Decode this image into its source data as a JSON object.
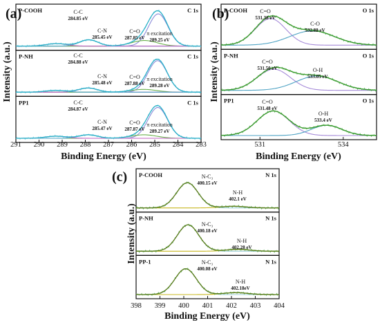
{
  "chart_data": [
    {
      "type": "line",
      "panel": "(a)",
      "xlabel": "Binding Energy (eV)",
      "ylabel": "Intensity (a.u.)",
      "xlim": [
        291,
        283
      ],
      "xticks": [
        283,
        284,
        285,
        286,
        287,
        288,
        289,
        290,
        291
      ],
      "subplots": [
        {
          "sample": "P-COOH",
          "region": "C 1s",
          "peaks": [
            {
              "name": "C-C",
              "value": "284.85 eV",
              "x": 284.85,
              "height": 0.92,
              "width": 0.42,
              "color": "#8a8ad8"
            },
            {
              "name": "C-N",
              "value": "285.45 eV",
              "x": 285.45,
              "height": 0.16,
              "width": 0.55,
              "color": "#6ab04c"
            },
            {
              "name": "C=O",
              "value": "287.85 eV",
              "x": 287.85,
              "height": 0.18,
              "width": 0.4,
              "color": "#4fa3c4"
            },
            {
              "name": "π excitation",
              "value": "289.25 eV",
              "x": 289.25,
              "height": 0.07,
              "width": 0.45,
              "color": "#c060c0"
            }
          ]
        },
        {
          "sample": "P-NH",
          "region": "C 1s",
          "peaks": [
            {
              "name": "C-C",
              "value": "284.88 eV",
              "x": 284.88,
              "height": 0.9,
              "width": 0.42,
              "color": "#8a8ad8"
            },
            {
              "name": "C-N",
              "value": "285.48 eV",
              "x": 285.48,
              "height": 0.08,
              "width": 0.55,
              "color": "#6ab04c"
            },
            {
              "name": "C=O",
              "value": "287.88 eV",
              "x": 287.88,
              "height": 0.12,
              "width": 0.4,
              "color": "#c060c0"
            },
            {
              "name": "π excitation",
              "value": "289.28 eV",
              "x": 289.28,
              "height": 0.05,
              "width": 0.45,
              "color": "#4fa3c4"
            }
          ]
        },
        {
          "sample": "PP1",
          "region": "C 1s",
          "peaks": [
            {
              "name": "C-C",
              "value": "284.87 eV",
              "x": 284.87,
              "height": 0.88,
              "width": 0.42,
              "color": "#8a8ad8"
            },
            {
              "name": "C-N",
              "value": "285.47 eV",
              "x": 285.47,
              "height": 0.1,
              "width": 0.55,
              "color": "#6ab04c"
            },
            {
              "name": "C=O",
              "value": "287.87 eV",
              "x": 287.87,
              "height": 0.1,
              "width": 0.4,
              "color": "#4fa3c4"
            },
            {
              "name": "π excitation",
              "value": "289.27 eV",
              "x": 289.27,
              "height": 0.06,
              "width": 0.45,
              "color": "#c060c0"
            }
          ]
        }
      ]
    },
    {
      "type": "line",
      "panel": "(b)",
      "xlabel": "Binding Energy (eV)",
      "ylabel": "Intensity (a.u.)",
      "xlim": [
        529.6,
        535.2
      ],
      "xticks": [
        531,
        534
      ],
      "subplots": [
        {
          "sample": "P-COOH",
          "region": "O 1s",
          "peaks": [
            {
              "name": "C=O",
              "value": "531.38 eV",
              "x": 531.38,
              "height": 0.78,
              "width": 0.55,
              "color": "#a58ad8"
            },
            {
              "name": "C-O",
              "value": "532.88 eV",
              "x": 532.88,
              "height": 0.42,
              "width": 0.8,
              "color": "#4fa3c4"
            }
          ]
        },
        {
          "sample": "P-NH",
          "region": "O 1s",
          "peaks": [
            {
              "name": "C=O",
              "value": "531.50 eV",
              "x": 531.5,
              "height": 0.62,
              "width": 0.6,
              "color": "#a58ad8"
            },
            {
              "name": "O-H",
              "value": "533.05 eV",
              "x": 533.05,
              "height": 0.42,
              "width": 0.75,
              "color": "#4fa3c4"
            }
          ]
        },
        {
          "sample": "PP1",
          "region": "O 1s",
          "peaks": [
            {
              "name": "C=O",
              "value": "531.48 eV",
              "x": 531.48,
              "height": 0.72,
              "width": 0.58,
              "color": "#a58ad8"
            },
            {
              "name": "O-H",
              "value": "533.4 eV",
              "x": 533.4,
              "height": 0.3,
              "width": 0.55,
              "color": "#4fa3c4"
            }
          ]
        }
      ]
    },
    {
      "type": "line",
      "panel": "(c)",
      "xlabel": "Binding Energy (eV)",
      "ylabel": "Intensity (a.u.)",
      "xlim": [
        398,
        404
      ],
      "xticks": [
        398,
        399,
        400,
        401,
        402,
        403,
        404
      ],
      "subplots": [
        {
          "sample": "P-COOH",
          "region": "N 1s",
          "peaks": [
            {
              "name": "N-C₃",
              "value": "400.15 eV",
              "x": 400.15,
              "height": 0.78,
              "width": 0.45,
              "color": "#9fcfd6"
            },
            {
              "name": "N-H",
              "value": "402.1 eV",
              "x": 402.1,
              "height": 0.05,
              "width": 0.5,
              "color": "#c8b820"
            }
          ]
        },
        {
          "sample": "P-NH",
          "region": "N 1s",
          "peaks": [
            {
              "name": "N-C₃",
              "value": "400.18 eV",
              "x": 400.18,
              "height": 0.82,
              "width": 0.45,
              "color": "#9fcfd6"
            },
            {
              "name": "N-H",
              "value": "402.28 eV",
              "x": 402.28,
              "height": 0.06,
              "width": 0.5,
              "color": "#c8b820"
            }
          ]
        },
        {
          "sample": "PP-1",
          "region": "N 1s",
          "peaks": [
            {
              "name": "N-C₃",
              "value": "400.08 eV",
              "x": 400.08,
              "height": 0.8,
              "width": 0.45,
              "color": "#9fcfd6"
            },
            {
              "name": "N-H",
              "value": "402.18eV",
              "x": 402.18,
              "height": 0.06,
              "width": 0.5,
              "color": "#c8b820"
            }
          ]
        }
      ]
    }
  ]
}
